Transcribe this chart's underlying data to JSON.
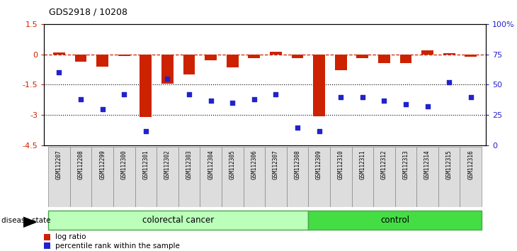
{
  "title": "GDS2918 / 10208",
  "samples": [
    "GSM112207",
    "GSM112208",
    "GSM112299",
    "GSM112300",
    "GSM112301",
    "GSM112302",
    "GSM112303",
    "GSM112304",
    "GSM112305",
    "GSM112306",
    "GSM112307",
    "GSM112308",
    "GSM112309",
    "GSM112310",
    "GSM112311",
    "GSM112312",
    "GSM112313",
    "GSM112314",
    "GSM112315",
    "GSM112316"
  ],
  "log_ratio": [
    0.08,
    -0.35,
    -0.6,
    -0.1,
    -3.1,
    -1.45,
    -1.0,
    -0.3,
    -0.65,
    -0.18,
    0.12,
    -0.18,
    -3.05,
    -0.8,
    -0.18,
    -0.45,
    -0.45,
    0.2,
    0.07,
    -0.12
  ],
  "percentile_rank": [
    60,
    38,
    30,
    42,
    12,
    55,
    42,
    37,
    35,
    38,
    42,
    15,
    12,
    40,
    40,
    37,
    34,
    32,
    52,
    40
  ],
  "n_colorectal": 12,
  "n_control": 8,
  "bar_color": "#cc2200",
  "scatter_color": "#2222cc",
  "colorectal_color": "#bbffbb",
  "control_color": "#44dd44",
  "left_ylim": [
    -4.5,
    1.5
  ],
  "right_ylim": [
    0,
    100
  ],
  "left_yticks": [
    1.5,
    0.0,
    -1.5,
    -3.0,
    -4.5
  ],
  "right_yticks": [
    100,
    75,
    50,
    25,
    0
  ],
  "right_yticklabels": [
    "100%",
    "75",
    "50",
    "25",
    "0"
  ],
  "hline_y": [
    -1.5,
    -3.0
  ],
  "disease_state_label": "disease state",
  "colorectal_label": "colorectal cancer",
  "control_label": "control",
  "legend_log_ratio": "log ratio",
  "legend_percentile": "percentile rank within the sample"
}
